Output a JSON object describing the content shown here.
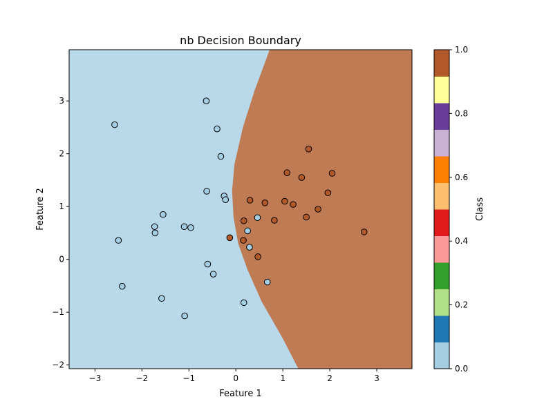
{
  "chart_data": {
    "type": "scatter",
    "title": "nb Decision Boundary",
    "xlabel": "Feature 1",
    "ylabel": "Feature 2",
    "xlim": [
      -3.55,
      3.75
    ],
    "ylim": [
      -2.07,
      3.97
    ],
    "x_ticks": [
      -3,
      -2,
      -1,
      0,
      1,
      2,
      3
    ],
    "x_tick_labels": [
      "−3",
      "−2",
      "−1",
      "0",
      "1",
      "2",
      "3"
    ],
    "y_ticks": [
      -2,
      -1,
      0,
      1,
      2,
      3
    ],
    "y_tick_labels": [
      "−2",
      "−1",
      "0",
      "1",
      "2",
      "3"
    ],
    "grid": false,
    "region_colors": {
      "class_0": "#b9d8e9",
      "class_1": "#bf7b53"
    },
    "point_colors": {
      "class_0": "#a6cee3",
      "class_1": "#b15928"
    },
    "boundary": [
      [
        1.33,
        -2.07
      ],
      [
        1.0,
        -1.5
      ],
      [
        0.55,
        -0.8
      ],
      [
        0.25,
        -0.2
      ],
      [
        0.05,
        0.3
      ],
      [
        -0.05,
        0.8
      ],
      [
        -0.08,
        1.3
      ],
      [
        -0.03,
        1.8
      ],
      [
        0.15,
        2.5
      ],
      [
        0.4,
        3.2
      ],
      [
        0.72,
        3.97
      ]
    ],
    "points": [
      {
        "x": -2.58,
        "y": 2.55,
        "class": 0
      },
      {
        "x": -0.63,
        "y": 3.0,
        "class": 0
      },
      {
        "x": -0.4,
        "y": 2.47,
        "class": 0
      },
      {
        "x": -0.32,
        "y": 1.95,
        "class": 0
      },
      {
        "x": -0.62,
        "y": 1.29,
        "class": 0
      },
      {
        "x": -0.25,
        "y": 1.2,
        "class": 0
      },
      {
        "x": -0.22,
        "y": 1.13,
        "class": 0
      },
      {
        "x": -1.55,
        "y": 0.85,
        "class": 0
      },
      {
        "x": -1.73,
        "y": 0.62,
        "class": 0
      },
      {
        "x": -1.72,
        "y": 0.5,
        "class": 0
      },
      {
        "x": -1.1,
        "y": 0.62,
        "class": 0
      },
      {
        "x": -0.96,
        "y": 0.6,
        "class": 0
      },
      {
        "x": -2.5,
        "y": 0.36,
        "class": 0
      },
      {
        "x": -0.6,
        "y": -0.09,
        "class": 0
      },
      {
        "x": -0.48,
        "y": -0.28,
        "class": 0
      },
      {
        "x": -2.42,
        "y": -0.51,
        "class": 0
      },
      {
        "x": -1.58,
        "y": -0.74,
        "class": 0
      },
      {
        "x": -1.09,
        "y": -1.07,
        "class": 0
      },
      {
        "x": 0.17,
        "y": -0.82,
        "class": 0
      },
      {
        "x": 0.67,
        "y": -0.43,
        "class": 0
      },
      {
        "x": 0.25,
        "y": 0.54,
        "class": 0
      },
      {
        "x": 0.46,
        "y": 0.79,
        "class": 0
      },
      {
        "x": 0.29,
        "y": 0.23,
        "class": 0
      },
      {
        "x": 1.55,
        "y": 2.09,
        "class": 1
      },
      {
        "x": 1.09,
        "y": 1.64,
        "class": 1
      },
      {
        "x": 1.4,
        "y": 1.55,
        "class": 1
      },
      {
        "x": 2.05,
        "y": 1.63,
        "class": 1
      },
      {
        "x": 1.96,
        "y": 1.26,
        "class": 1
      },
      {
        "x": 0.3,
        "y": 1.12,
        "class": 1
      },
      {
        "x": 0.62,
        "y": 1.07,
        "class": 1
      },
      {
        "x": 1.04,
        "y": 1.1,
        "class": 1
      },
      {
        "x": 1.22,
        "y": 1.04,
        "class": 1
      },
      {
        "x": 1.75,
        "y": 0.95,
        "class": 1
      },
      {
        "x": 1.5,
        "y": 0.8,
        "class": 1
      },
      {
        "x": 0.82,
        "y": 0.74,
        "class": 1
      },
      {
        "x": 0.17,
        "y": 0.73,
        "class": 1
      },
      {
        "x": -0.13,
        "y": 0.41,
        "class": 1
      },
      {
        "x": 0.16,
        "y": 0.36,
        "class": 1
      },
      {
        "x": 0.47,
        "y": 0.05,
        "class": 1
      },
      {
        "x": 2.73,
        "y": 0.52,
        "class": 1
      }
    ],
    "colorbar": {
      "label": "Class",
      "ticks": [
        0.0,
        0.2,
        0.4,
        0.6,
        0.8,
        1.0
      ],
      "tick_labels": [
        "0.0",
        "0.2",
        "0.4",
        "0.6",
        "0.8",
        "1.0"
      ],
      "colors": [
        "#a6cee3",
        "#1f78b4",
        "#b2df8a",
        "#33a02c",
        "#fb9a99",
        "#e31a1c",
        "#fdbf6f",
        "#ff7f00",
        "#cab2d6",
        "#6a3d9a",
        "#ffff99",
        "#b15928"
      ]
    }
  }
}
